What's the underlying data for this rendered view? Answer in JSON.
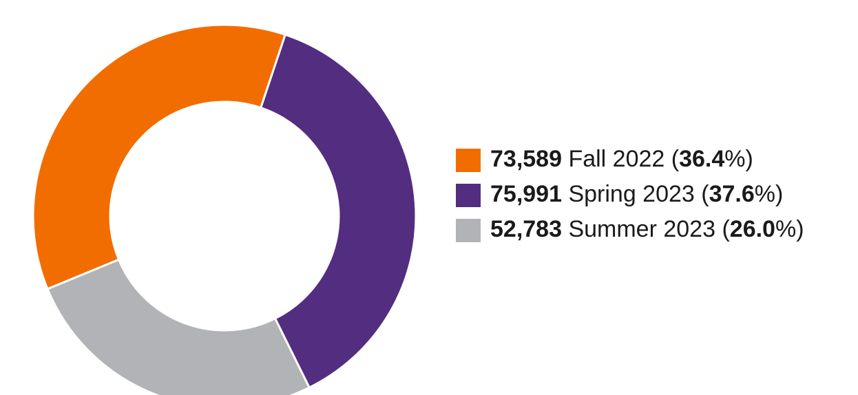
{
  "chart_data": {
    "type": "donut",
    "categories": [
      "Fall 2022",
      "Spring 2023",
      "Summer 2023"
    ],
    "values": [
      73589,
      75991,
      52783
    ],
    "value_labels": [
      "73,589",
      "75,991",
      "52,783"
    ],
    "percentages": [
      36.4,
      37.6,
      26.0
    ],
    "percent_labels": [
      "(36.4%)",
      "(37.6%)",
      "(26.0%)"
    ],
    "colors": [
      "#f26d00",
      "#522d80",
      "#b1b3b6"
    ],
    "legend": "right"
  }
}
